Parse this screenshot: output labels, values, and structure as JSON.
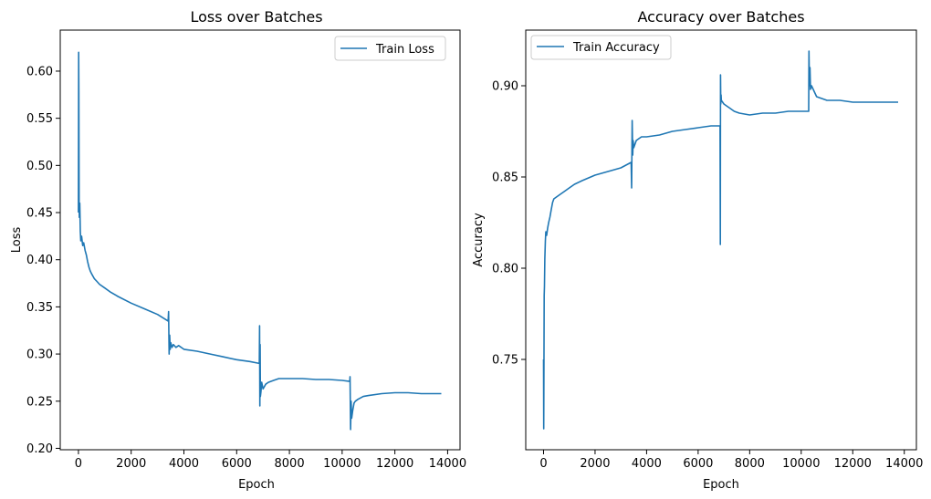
{
  "figure": {
    "background": "#ffffff",
    "line_color": "#1f77b4"
  },
  "chart_data": [
    {
      "type": "line",
      "title": "Loss over Batches",
      "xlabel": "Epoch",
      "ylabel": "Loss",
      "xlim": [
        -690,
        14470
      ],
      "ylim": [
        0.1985,
        0.6435
      ],
      "xticks": [
        0,
        2000,
        4000,
        6000,
        8000,
        10000,
        12000,
        14000
      ],
      "xtick_labels": [
        "0",
        "2000",
        "4000",
        "6000",
        "8000",
        "10000",
        "12000",
        "14000"
      ],
      "yticks": [
        0.2,
        0.25,
        0.3,
        0.35,
        0.4,
        0.45,
        0.5,
        0.55,
        0.6
      ],
      "ytick_labels": [
        "0.20",
        "0.25",
        "0.30",
        "0.35",
        "0.40",
        "0.45",
        "0.50",
        "0.55",
        "0.60"
      ],
      "grid": false,
      "legend": "upper right",
      "series": [
        {
          "name": "Train Loss",
          "color": "#1f77b4",
          "points": [
            [
              0,
              0.45
            ],
            [
              8,
              0.62
            ],
            [
              15,
              0.58
            ],
            [
              25,
              0.46
            ],
            [
              35,
              0.445
            ],
            [
              50,
              0.46
            ],
            [
              70,
              0.43
            ],
            [
              90,
              0.42
            ],
            [
              120,
              0.425
            ],
            [
              160,
              0.415
            ],
            [
              200,
              0.418
            ],
            [
              250,
              0.41
            ],
            [
              300,
              0.405
            ],
            [
              350,
              0.398
            ],
            [
              400,
              0.392
            ],
            [
              450,
              0.388
            ],
            [
              500,
              0.385
            ],
            [
              600,
              0.38
            ],
            [
              700,
              0.377
            ],
            [
              800,
              0.374
            ],
            [
              1000,
              0.37
            ],
            [
              1200,
              0.366
            ],
            [
              1500,
              0.361
            ],
            [
              2000,
              0.354
            ],
            [
              2500,
              0.348
            ],
            [
              3000,
              0.342
            ],
            [
              3400,
              0.335
            ],
            [
              3420,
              0.345
            ],
            [
              3440,
              0.3
            ],
            [
              3460,
              0.32
            ],
            [
              3480,
              0.305
            ],
            [
              3500,
              0.312
            ],
            [
              3550,
              0.307
            ],
            [
              3600,
              0.31
            ],
            [
              3700,
              0.307
            ],
            [
              3800,
              0.309
            ],
            [
              4000,
              0.305
            ],
            [
              4500,
              0.303
            ],
            [
              5000,
              0.3
            ],
            [
              5500,
              0.297
            ],
            [
              6000,
              0.294
            ],
            [
              6500,
              0.292
            ],
            [
              6860,
              0.29
            ],
            [
              6870,
              0.33
            ],
            [
              6880,
              0.245
            ],
            [
              6890,
              0.31
            ],
            [
              6900,
              0.255
            ],
            [
              6920,
              0.26
            ],
            [
              6950,
              0.27
            ],
            [
              7000,
              0.263
            ],
            [
              7100,
              0.268
            ],
            [
              7200,
              0.27
            ],
            [
              7400,
              0.272
            ],
            [
              7600,
              0.274
            ],
            [
              8000,
              0.274
            ],
            [
              8500,
              0.274
            ],
            [
              9000,
              0.273
            ],
            [
              9500,
              0.273
            ],
            [
              10000,
              0.272
            ],
            [
              10290,
              0.271
            ],
            [
              10300,
              0.276
            ],
            [
              10320,
              0.22
            ],
            [
              10340,
              0.25
            ],
            [
              10360,
              0.232
            ],
            [
              10400,
              0.24
            ],
            [
              10450,
              0.248
            ],
            [
              10500,
              0.25
            ],
            [
              10600,
              0.252
            ],
            [
              10800,
              0.255
            ],
            [
              11000,
              0.256
            ],
            [
              11500,
              0.258
            ],
            [
              12000,
              0.259
            ],
            [
              12500,
              0.259
            ],
            [
              13000,
              0.258
            ],
            [
              13500,
              0.258
            ],
            [
              13760,
              0.258
            ]
          ]
        }
      ]
    },
    {
      "type": "line",
      "title": "Accuracy over Batches",
      "xlabel": "Epoch",
      "ylabel": "Accuracy",
      "xlim": [
        -690,
        14470
      ],
      "ylim": [
        0.7005,
        0.9305
      ],
      "xticks": [
        0,
        2000,
        4000,
        6000,
        8000,
        10000,
        12000,
        14000
      ],
      "xtick_labels": [
        "0",
        "2000",
        "4000",
        "6000",
        "8000",
        "10000",
        "12000",
        "14000"
      ],
      "yticks": [
        0.75,
        0.8,
        0.85,
        0.9
      ],
      "ytick_labels": [
        "0.75",
        "0.80",
        "0.85",
        "0.90"
      ],
      "grid": false,
      "legend": "upper left",
      "series": [
        {
          "name": "Train Accuracy",
          "color": "#1f77b4",
          "points": [
            [
              0,
              0.75
            ],
            [
              8,
              0.712
            ],
            [
              15,
              0.74
            ],
            [
              25,
              0.785
            ],
            [
              35,
              0.79
            ],
            [
              50,
              0.805
            ],
            [
              70,
              0.815
            ],
            [
              90,
              0.82
            ],
            [
              120,
              0.818
            ],
            [
              160,
              0.822
            ],
            [
              200,
              0.825
            ],
            [
              250,
              0.828
            ],
            [
              300,
              0.832
            ],
            [
              350,
              0.836
            ],
            [
              400,
              0.838
            ],
            [
              500,
              0.839
            ],
            [
              600,
              0.84
            ],
            [
              800,
              0.842
            ],
            [
              1000,
              0.844
            ],
            [
              1200,
              0.846
            ],
            [
              1500,
              0.848
            ],
            [
              2000,
              0.851
            ],
            [
              2500,
              0.853
            ],
            [
              3000,
              0.855
            ],
            [
              3400,
              0.858
            ],
            [
              3420,
              0.844
            ],
            [
              3440,
              0.881
            ],
            [
              3460,
              0.862
            ],
            [
              3480,
              0.87
            ],
            [
              3500,
              0.866
            ],
            [
              3550,
              0.868
            ],
            [
              3600,
              0.87
            ],
            [
              3700,
              0.871
            ],
            [
              3800,
              0.872
            ],
            [
              4000,
              0.872
            ],
            [
              4500,
              0.873
            ],
            [
              5000,
              0.875
            ],
            [
              5500,
              0.876
            ],
            [
              6000,
              0.877
            ],
            [
              6500,
              0.878
            ],
            [
              6850,
              0.878
            ],
            [
              6860,
              0.813
            ],
            [
              6870,
              0.906
            ],
            [
              6880,
              0.89
            ],
            [
              6890,
              0.895
            ],
            [
              6900,
              0.892
            ],
            [
              6950,
              0.891
            ],
            [
              7000,
              0.89
            ],
            [
              7100,
              0.889
            ],
            [
              7200,
              0.888
            ],
            [
              7400,
              0.886
            ],
            [
              7600,
              0.885
            ],
            [
              8000,
              0.884
            ],
            [
              8500,
              0.885
            ],
            [
              9000,
              0.885
            ],
            [
              9500,
              0.886
            ],
            [
              10000,
              0.886
            ],
            [
              10290,
              0.886
            ],
            [
              10300,
              0.919
            ],
            [
              10320,
              0.9
            ],
            [
              10340,
              0.91
            ],
            [
              10360,
              0.898
            ],
            [
              10400,
              0.9
            ],
            [
              10500,
              0.897
            ],
            [
              10600,
              0.894
            ],
            [
              10800,
              0.893
            ],
            [
              11000,
              0.892
            ],
            [
              11500,
              0.892
            ],
            [
              12000,
              0.891
            ],
            [
              12500,
              0.891
            ],
            [
              13000,
              0.891
            ],
            [
              13500,
              0.891
            ],
            [
              13760,
              0.891
            ]
          ]
        }
      ]
    }
  ]
}
